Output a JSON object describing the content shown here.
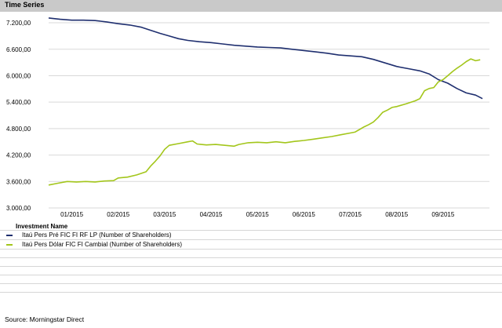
{
  "header": {
    "title": "Time Series"
  },
  "chart_data": {
    "type": "line",
    "y_ticks": [
      "7.200,00",
      "6.600,00",
      "6.000,00",
      "5.400,00",
      "4.800,00",
      "4.200,00",
      "3.600,00",
      "3.000,00"
    ],
    "y_tick_values": [
      7200,
      6600,
      6000,
      5400,
      4800,
      4200,
      3600,
      3000
    ],
    "ylim": [
      3000,
      7450
    ],
    "x_ticks": [
      "01/2015",
      "02/2015",
      "03/2015",
      "04/2015",
      "05/2015",
      "06/2015",
      "07/2015",
      "08/2015",
      "09/2015"
    ],
    "x_tick_index": [
      0.5,
      1.5,
      2.5,
      3.5,
      4.5,
      5.5,
      6.5,
      7.5,
      8.5
    ],
    "xlim": [
      0,
      9.5
    ],
    "grid": "horizontal",
    "series": [
      {
        "name": "Itaú Pers Pré FIC FI RF LP (Number of Shareholders)",
        "color": "#1f2f6f",
        "points": [
          [
            0.0,
            7310
          ],
          [
            0.25,
            7280
          ],
          [
            0.5,
            7260
          ],
          [
            0.75,
            7260
          ],
          [
            1.0,
            7250
          ],
          [
            1.25,
            7220
          ],
          [
            1.5,
            7180
          ],
          [
            1.75,
            7150
          ],
          [
            2.0,
            7100
          ],
          [
            2.2,
            7030
          ],
          [
            2.4,
            6960
          ],
          [
            2.6,
            6900
          ],
          [
            2.8,
            6840
          ],
          [
            3.0,
            6800
          ],
          [
            3.25,
            6770
          ],
          [
            3.5,
            6750
          ],
          [
            3.75,
            6720
          ],
          [
            4.0,
            6690
          ],
          [
            4.25,
            6670
          ],
          [
            4.5,
            6650
          ],
          [
            4.75,
            6640
          ],
          [
            5.0,
            6630
          ],
          [
            5.25,
            6600
          ],
          [
            5.5,
            6570
          ],
          [
            5.75,
            6540
          ],
          [
            6.0,
            6510
          ],
          [
            6.25,
            6470
          ],
          [
            6.5,
            6450
          ],
          [
            6.75,
            6430
          ],
          [
            7.0,
            6370
          ],
          [
            7.25,
            6290
          ],
          [
            7.5,
            6210
          ],
          [
            7.75,
            6160
          ],
          [
            8.0,
            6110
          ],
          [
            8.2,
            6040
          ],
          [
            8.4,
            5910
          ],
          [
            8.6,
            5830
          ],
          [
            8.8,
            5710
          ],
          [
            9.0,
            5610
          ],
          [
            9.2,
            5560
          ],
          [
            9.35,
            5480
          ]
        ]
      },
      {
        "name": "Itaú Pers Dólar FIC FI Cambial (Number of Shareholders)",
        "color": "#a3c61b",
        "points": [
          [
            0.0,
            3520
          ],
          [
            0.2,
            3560
          ],
          [
            0.4,
            3600
          ],
          [
            0.6,
            3590
          ],
          [
            0.8,
            3600
          ],
          [
            1.0,
            3590
          ],
          [
            1.2,
            3610
          ],
          [
            1.4,
            3620
          ],
          [
            1.5,
            3680
          ],
          [
            1.7,
            3700
          ],
          [
            1.9,
            3750
          ],
          [
            2.1,
            3820
          ],
          [
            2.2,
            3950
          ],
          [
            2.3,
            4060
          ],
          [
            2.4,
            4180
          ],
          [
            2.5,
            4330
          ],
          [
            2.6,
            4420
          ],
          [
            2.8,
            4460
          ],
          [
            3.0,
            4500
          ],
          [
            3.1,
            4520
          ],
          [
            3.2,
            4450
          ],
          [
            3.4,
            4430
          ],
          [
            3.6,
            4440
          ],
          [
            3.8,
            4420
          ],
          [
            4.0,
            4400
          ],
          [
            4.1,
            4440
          ],
          [
            4.3,
            4480
          ],
          [
            4.5,
            4490
          ],
          [
            4.7,
            4480
          ],
          [
            4.9,
            4500
          ],
          [
            5.1,
            4480
          ],
          [
            5.3,
            4510
          ],
          [
            5.5,
            4530
          ],
          [
            5.7,
            4560
          ],
          [
            5.9,
            4590
          ],
          [
            6.1,
            4620
          ],
          [
            6.3,
            4660
          ],
          [
            6.5,
            4700
          ],
          [
            6.6,
            4720
          ],
          [
            6.7,
            4780
          ],
          [
            6.8,
            4840
          ],
          [
            6.9,
            4890
          ],
          [
            7.0,
            4950
          ],
          [
            7.1,
            5050
          ],
          [
            7.2,
            5170
          ],
          [
            7.3,
            5220
          ],
          [
            7.4,
            5280
          ],
          [
            7.5,
            5300
          ],
          [
            7.7,
            5360
          ],
          [
            7.9,
            5430
          ],
          [
            8.0,
            5480
          ],
          [
            8.1,
            5660
          ],
          [
            8.2,
            5710
          ],
          [
            8.3,
            5730
          ],
          [
            8.4,
            5860
          ],
          [
            8.5,
            5910
          ],
          [
            8.6,
            6000
          ],
          [
            8.7,
            6090
          ],
          [
            8.8,
            6170
          ],
          [
            8.9,
            6240
          ],
          [
            9.0,
            6320
          ],
          [
            9.1,
            6380
          ],
          [
            9.2,
            6340
          ],
          [
            9.3,
            6360
          ]
        ]
      }
    ]
  },
  "legend": {
    "header": "Investment Name",
    "items": [
      {
        "name": "Itaú Pers Pré FIC FI RF LP (Number of Shareholders)",
        "color": "#1f2f6f"
      },
      {
        "name": "Itaú Pers Dólar FIC FI Cambial (Number of Shareholders)",
        "color": "#a3c61b"
      }
    ]
  },
  "footer": {
    "source": "Source: Morningstar Direct"
  }
}
